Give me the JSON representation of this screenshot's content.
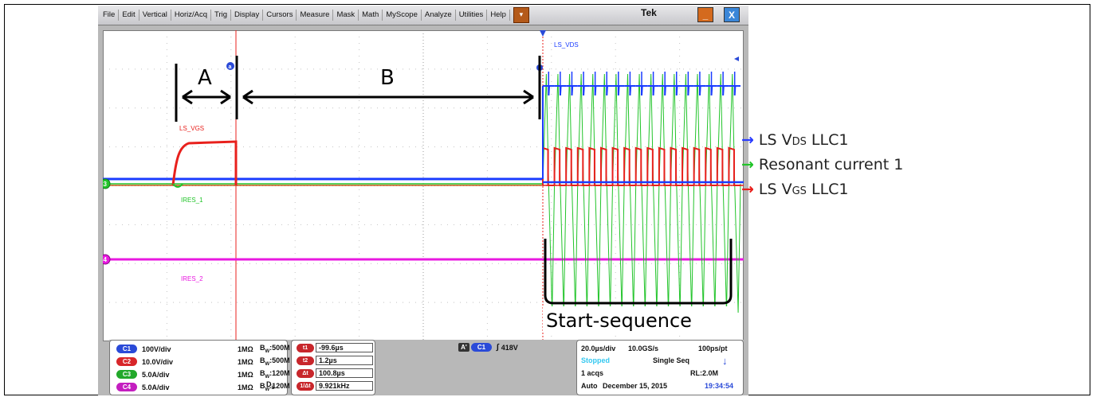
{
  "menu": {
    "items": [
      "File",
      "Edit",
      "Vertical",
      "Horiz/Acq",
      "Trig",
      "Display",
      "Cursors",
      "Measure",
      "Mask",
      "Math",
      "MyScope",
      "Analyze",
      "Utilities",
      "Help"
    ],
    "arrow": "▾",
    "brand": "Tek",
    "minimize": "_",
    "close": "X"
  },
  "waveform": {
    "labels": {
      "ls_vgs": "LS_VGS",
      "ls_vds": "LS_VDS",
      "ires_1": "IRES_1",
      "ires_2": "IRES_2"
    },
    "markers": {
      "c3": "3",
      "c4": "4",
      "a_marker": "a"
    },
    "annotations": {
      "a": "A",
      "b": "B",
      "start": "Start-sequence"
    },
    "colors": {
      "ch1": "#1a3cff",
      "ch2": "#e8201c",
      "ch3": "#22c42a",
      "ch4": "#e818e0"
    }
  },
  "channels": [
    {
      "badge": "C1",
      "scale": "100V/div",
      "term": "1MΩ",
      "bw": "500M",
      "color": "#2a4ad8"
    },
    {
      "badge": "C2",
      "scale": "10.0V/div",
      "term": "1MΩ",
      "bw": "500M",
      "color": "#d8262a"
    },
    {
      "badge": "C3",
      "scale": "5.0A/div",
      "term": "1MΩ",
      "bw": "120M",
      "color": "#22a82a"
    },
    {
      "badge": "C4",
      "scale": "5.0A/div",
      "term": "1MΩ",
      "bw": "120M",
      "color": "#c41ec0"
    }
  ],
  "bw_prefix": "B",
  "bw_sub": "W",
  "bw_sep": ":",
  "ds_label": "D",
  "ds_sub": "S",
  "cursors": [
    {
      "badge": "t1",
      "value": "-99.6µs"
    },
    {
      "badge": "t2",
      "value": "1.2µs"
    },
    {
      "badge": "Δt",
      "value": "100.8µs"
    },
    {
      "badge": "1/Δt",
      "value": "9.921kHz"
    }
  ],
  "trigger": {
    "a_badge": "A'",
    "ch_badge": "C1",
    "edge": "∫",
    "level": "418V"
  },
  "acq": {
    "timebase": "20.0µs/div",
    "rate": "10.0GS/s",
    "res": "100ps/pt",
    "state": "Stopped",
    "mode": "Single Seq",
    "acqs": "1 acqs",
    "rl": "RL:2.0M",
    "auto": "Auto",
    "date": "December 15, 2015",
    "time": "19:34:54"
  },
  "legend": [
    {
      "arrow": "→",
      "color": "#2a3cff",
      "pre": "LS V",
      "sub": "DS",
      "post": " LLC1"
    },
    {
      "arrow": "→",
      "color": "#22c42a",
      "pre": "Resonant current 1",
      "sub": "",
      "post": ""
    },
    {
      "arrow": "→",
      "color": "#e8201c",
      "pre": "LS V",
      "sub": "GS",
      "post": " LLC1"
    }
  ]
}
